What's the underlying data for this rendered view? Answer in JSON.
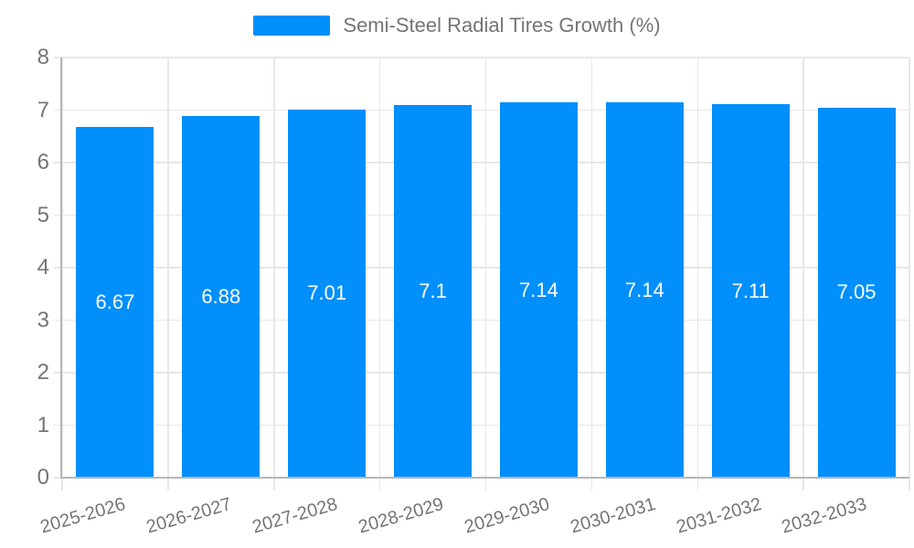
{
  "legend": {
    "label": "Semi-Steel Radial Tires Growth (%)"
  },
  "chart_data": {
    "type": "bar",
    "title": "Semi-Steel Radial Tires Growth (%)",
    "categories": [
      "2025-2026",
      "2026-2027",
      "2027-2028",
      "2028-2029",
      "2029-2030",
      "2030-2031",
      "2031-2032",
      "2032-2033"
    ],
    "series": [
      {
        "name": "Semi-Steel Radial Tires Growth (%)",
        "values": [
          6.67,
          6.88,
          7.01,
          7.1,
          7.14,
          7.14,
          7.11,
          7.05
        ]
      }
    ],
    "data_labels": [
      "6.67",
      "6.88",
      "7.01",
      "7.1",
      "7.14",
      "7.14",
      "7.11",
      "7.05"
    ],
    "xlabel": "",
    "ylabel": "",
    "ylim": [
      0,
      8
    ],
    "yticks": [
      0,
      1,
      2,
      3,
      4,
      5,
      6,
      7,
      8
    ],
    "grid": true,
    "legend_position": "top",
    "colors": {
      "bar": "#008FFB",
      "grid": "#e7e7e7",
      "axis_border": "#b6b6b6",
      "tick_text": "#757575",
      "bar_label": "#ffffff",
      "background": "#ffffff"
    }
  }
}
